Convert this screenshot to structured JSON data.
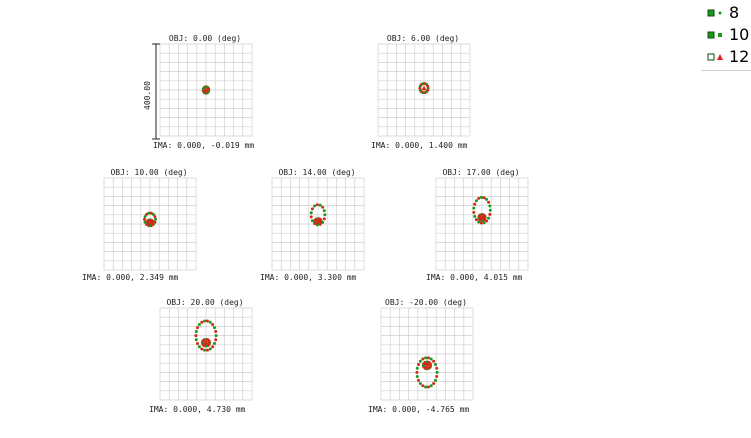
{
  "chart_data": {
    "type": "scatter",
    "title": "",
    "scale_label": "400.00",
    "colors": {
      "primary": "#1c9a1c",
      "secondary": "#d9251c",
      "grid": "#cfcfcf"
    },
    "legend": {
      "placement": "top-right",
      "entries": [
        {
          "label": "8",
          "icon": "green-square-marker"
        },
        {
          "label": "10",
          "icon": "green-square-marker"
        },
        {
          "label": "12",
          "icon": "red-triangle-marker"
        }
      ]
    },
    "panels": [
      {
        "obj": "OBJ: 0.00 (deg)",
        "ima": "IMA: 0.000, -0.019 mm",
        "spot": {
          "cy": 0,
          "rx": 0.03,
          "ry": 0.035,
          "inner": 0
        }
      },
      {
        "obj": "OBJ: 6.00 (deg)",
        "ima": "IMA: 0.000, 1.400 mm",
        "spot": {
          "cy": -0.02,
          "rx": 0.045,
          "ry": 0.05,
          "inner": 0
        }
      },
      {
        "obj": "OBJ: 10.00 (deg)",
        "ima": "IMA: 0.000, 2.349 mm",
        "spot": {
          "cy": -0.05,
          "rx": 0.06,
          "ry": 0.07,
          "inner": 0.3
        }
      },
      {
        "obj": "OBJ: 14.00 (deg)",
        "ima": "IMA: 0.000, 3.300 mm",
        "spot": {
          "cy": -0.1,
          "rx": 0.075,
          "ry": 0.11,
          "inner": 0.4
        }
      },
      {
        "obj": "OBJ: 17.00 (deg)",
        "ima": "IMA: 0.000, 4.015 mm",
        "spot": {
          "cy": -0.15,
          "rx": 0.09,
          "ry": 0.14,
          "inner": 0.35
        }
      },
      {
        "obj": "OBJ: 20.00 (deg)",
        "ima": "IMA: 0.000, 4.730 mm",
        "spot": {
          "cy": -0.2,
          "rx": 0.11,
          "ry": 0.16,
          "inner": 0.3
        }
      },
      {
        "obj": "OBJ: -20.00 (deg)",
        "ima": "IMA: 0.000, -4.765 mm",
        "spot": {
          "cy": 0.2,
          "rx": 0.11,
          "ry": 0.16,
          "inner": -0.3
        }
      }
    ]
  }
}
